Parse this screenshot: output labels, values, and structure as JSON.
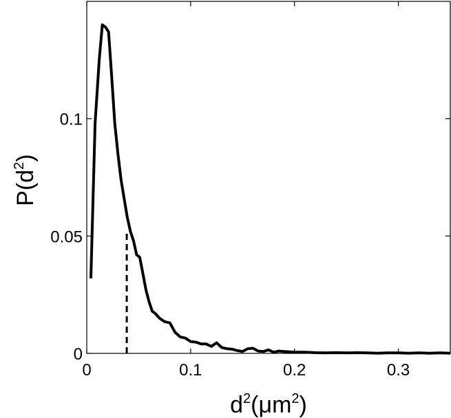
{
  "chart_data": {
    "type": "line",
    "xlabel": {
      "base": "d",
      "sup": "2",
      "mid": "(μm",
      "sup2": "2",
      "end": ")"
    },
    "ylabel": {
      "base": "P(d",
      "sup": "2",
      "end": ")"
    },
    "xlim": [
      0,
      0.35
    ],
    "ylim": [
      0,
      0.15
    ],
    "grid": false,
    "xticks": [
      0,
      0.1,
      0.2,
      0.3
    ],
    "xtick_labels": [
      "0",
      "0.1",
      "0.2",
      "0.3"
    ],
    "yticks": [
      0,
      0.05,
      0.1
    ],
    "ytick_labels": [
      "0",
      "0.05",
      "0.1"
    ],
    "series": [
      {
        "color": "#000000",
        "style": "solid",
        "x": [
          0.004,
          0.008,
          0.012,
          0.015,
          0.018,
          0.021,
          0.024,
          0.027,
          0.03,
          0.033,
          0.036,
          0.039,
          0.042,
          0.045,
          0.048,
          0.051,
          0.054,
          0.057,
          0.06,
          0.063,
          0.066,
          0.07,
          0.075,
          0.08,
          0.085,
          0.09,
          0.095,
          0.1,
          0.105,
          0.11,
          0.115,
          0.12,
          0.125,
          0.13,
          0.135,
          0.14,
          0.145,
          0.15,
          0.155,
          0.16,
          0.165,
          0.17,
          0.175,
          0.18,
          0.185,
          0.19,
          0.2,
          0.21,
          0.22,
          0.23,
          0.24,
          0.25,
          0.26,
          0.27,
          0.28,
          0.29,
          0.3,
          0.31,
          0.32,
          0.33,
          0.34,
          0.35
        ],
        "y": [
          0.032,
          0.098,
          0.125,
          0.14,
          0.139,
          0.137,
          0.118,
          0.098,
          0.085,
          0.074,
          0.066,
          0.058,
          0.052,
          0.048,
          0.042,
          0.041,
          0.034,
          0.027,
          0.022,
          0.018,
          0.017,
          0.015,
          0.0135,
          0.013,
          0.009,
          0.007,
          0.0065,
          0.005,
          0.0048,
          0.004,
          0.004,
          0.003,
          0.0045,
          0.0025,
          0.002,
          0.0018,
          0.0012,
          0.0008,
          0.002,
          0.0022,
          0.001,
          0.0008,
          0.0015,
          0.0005,
          0.001,
          0.0008,
          0.0005,
          0.0005,
          0.0003,
          0.0002,
          0.0003,
          0.0002,
          0.0003,
          0.0002,
          0.0001,
          0.0002,
          0.0002,
          0.0001,
          0.0002,
          0.0001,
          0.0002,
          0.0001
        ]
      },
      {
        "color": "#000000",
        "style": "dashed",
        "x": [
          0.0385,
          0.0385
        ],
        "y": [
          0,
          0.052
        ]
      }
    ]
  }
}
